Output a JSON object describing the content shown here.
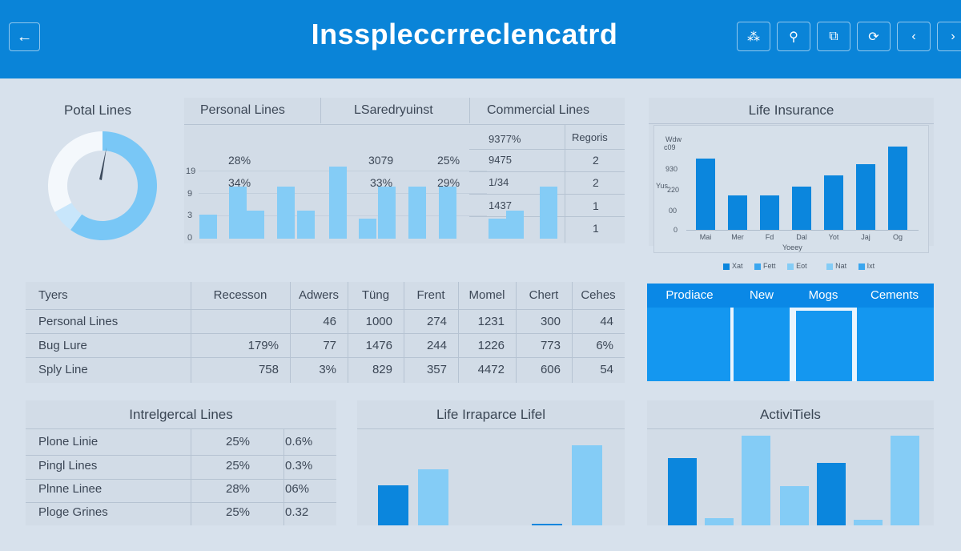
{
  "header": {
    "title": "Insspleccrreclencatrd",
    "back_icon": "arrow-left-icon",
    "buttons": [
      {
        "icon": "org-chart-icon",
        "glyph": "⁂"
      },
      {
        "icon": "search-icon",
        "glyph": "⚲"
      },
      {
        "icon": "image-edit-icon",
        "glyph": "⧉"
      },
      {
        "icon": "sync-icon",
        "glyph": "⟳"
      },
      {
        "icon": "chevron-left-icon",
        "glyph": "‹"
      },
      {
        "icon": "chevron-right-icon",
        "glyph": "›"
      }
    ]
  },
  "total_lines": {
    "title": "Potal Lines"
  },
  "personal_panel": {
    "col_titles": [
      "Personal Lines",
      "LSaredryuinst",
      "Commercial Lines"
    ],
    "y_ticks": [
      "19",
      "9",
      "3",
      "0"
    ],
    "values_row1": [
      "28%",
      "3079",
      "25%",
      "9377%"
    ],
    "values_row2": [
      "34%",
      "33%",
      "29%",
      "9475"
    ],
    "values_row3": [
      "1/34",
      "1437"
    ],
    "reports_header": "Regoris",
    "reports": [
      "2",
      "2",
      "1",
      "1"
    ]
  },
  "life_insurance": {
    "title": "Life Insurance",
    "y_ticks": [
      "Wdw",
      "c09",
      "930",
      "220",
      "00",
      "0"
    ],
    "y_label": "Yus",
    "x_label": "Yoeey",
    "legend": [
      "Xat",
      "Fett",
      "Eot",
      "Nat",
      "Ixt"
    ]
  },
  "types_table": {
    "headers": [
      "Tyers",
      "Recesson",
      "Adwers",
      "Tüng",
      "Frent",
      "Momel",
      "Chert",
      "Cehes"
    ],
    "rows": [
      [
        "Personal Lines",
        "",
        "46",
        "1000",
        "274",
        "1231",
        "300",
        "44"
      ],
      [
        "Bug Lure",
        "179%",
        "77",
        "1476",
        "244",
        "1226",
        "773",
        "6%"
      ],
      [
        "Sply Line",
        "758",
        "3%",
        "829",
        "357",
        "4472",
        "606",
        "54"
      ]
    ]
  },
  "product_panel": {
    "tabs": [
      "Prodiace",
      "New",
      "Mogs",
      "Cements"
    ]
  },
  "interregional": {
    "title": "Intrelgercal Lines",
    "rows": [
      [
        "Plone Linie",
        "25%",
        "0.6%"
      ],
      [
        "Pingl Lines",
        "25%",
        "0.3%"
      ],
      [
        "Plnne Linee",
        "28%",
        "06%"
      ],
      [
        "Ploge Grines",
        "25%",
        "0.32"
      ]
    ]
  },
  "life_irrapance": {
    "title": "Life Irraparce Lifel"
  },
  "activities": {
    "title": "ActiviTiels"
  },
  "chart_data": [
    {
      "type": "pie",
      "title": "Potal Lines",
      "slices": [
        {
          "name": "main",
          "value": 60,
          "color": "#79c7f6"
        },
        {
          "name": "light",
          "value": 7,
          "color": "#c8e6fb"
        },
        {
          "name": "rest",
          "value": 33,
          "color": "#f4f8fc"
        }
      ]
    },
    {
      "type": "bar",
      "title": "Personal Lines",
      "ylim": [
        0,
        20
      ],
      "values": [
        6,
        13,
        7,
        13,
        7,
        18,
        5,
        13,
        13,
        13,
        5,
        7,
        13
      ]
    },
    {
      "type": "bar",
      "title": "Life Insurance",
      "categories": [
        "Mai",
        "Mer",
        "Fd",
        "Dal",
        "Yot",
        "Jaj",
        "Og"
      ],
      "values": [
        250,
        120,
        120,
        150,
        190,
        230,
        290
      ],
      "ylim": [
        0,
        330
      ]
    },
    {
      "type": "bar",
      "title": "Life Irraparce Lifel",
      "values": [
        50,
        70,
        0,
        0,
        2,
        100
      ],
      "series_colors": [
        "dark",
        "light",
        "light",
        "light",
        "dark",
        "light"
      ]
    },
    {
      "type": "bar",
      "title": "ActiviTiels",
      "values": [
        75,
        8,
        100,
        44,
        70,
        6,
        100
      ],
      "series_colors": [
        "dark",
        "light",
        "light",
        "light",
        "dark",
        "light",
        "light"
      ]
    }
  ]
}
